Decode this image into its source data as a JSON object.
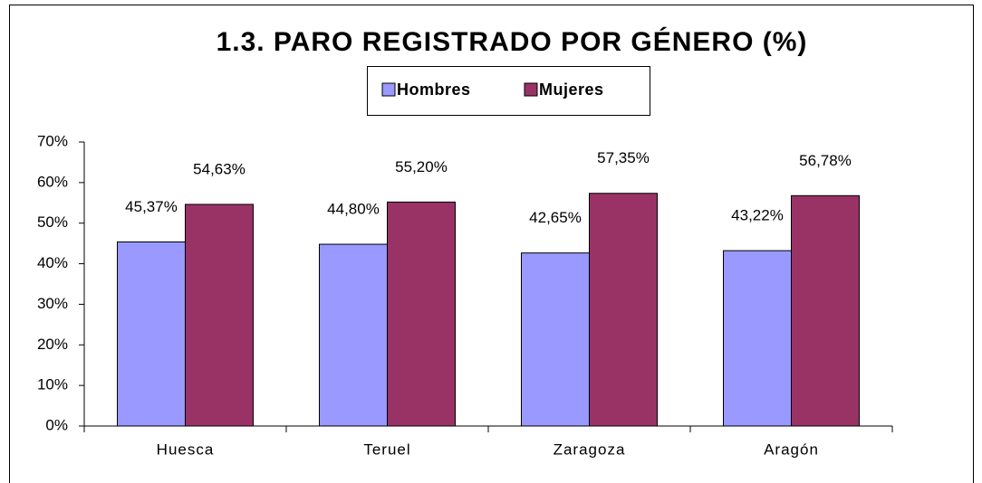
{
  "chart_data": {
    "type": "bar",
    "title": "1.3. PARO REGISTRADO POR GÉNERO (%)",
    "categories": [
      "Huesca",
      "Teruel",
      "Zaragoza",
      "Aragón"
    ],
    "series": [
      {
        "name": "Hombres",
        "color": "#9999ff",
        "values": [
          45.37,
          44.8,
          42.65,
          43.22
        ],
        "value_labels": [
          "45,37%",
          "44,80%",
          "42,65%",
          "43,22%"
        ]
      },
      {
        "name": "Mujeres",
        "color": "#993366",
        "values": [
          54.63,
          55.2,
          57.35,
          56.78
        ],
        "value_labels": [
          "54,63%",
          "55,20%",
          "57,35%",
          "56,78%"
        ]
      }
    ],
    "ylim": [
      0,
      70
    ],
    "yticks": [
      {
        "value": 0,
        "label": "0%"
      },
      {
        "value": 10,
        "label": "10%"
      },
      {
        "value": 20,
        "label": "20%"
      },
      {
        "value": 30,
        "label": "30%"
      },
      {
        "value": 40,
        "label": "40%"
      },
      {
        "value": 50,
        "label": "50%"
      },
      {
        "value": 60,
        "label": "60%"
      },
      {
        "value": 70,
        "label": "70%"
      }
    ],
    "legend": "top"
  }
}
